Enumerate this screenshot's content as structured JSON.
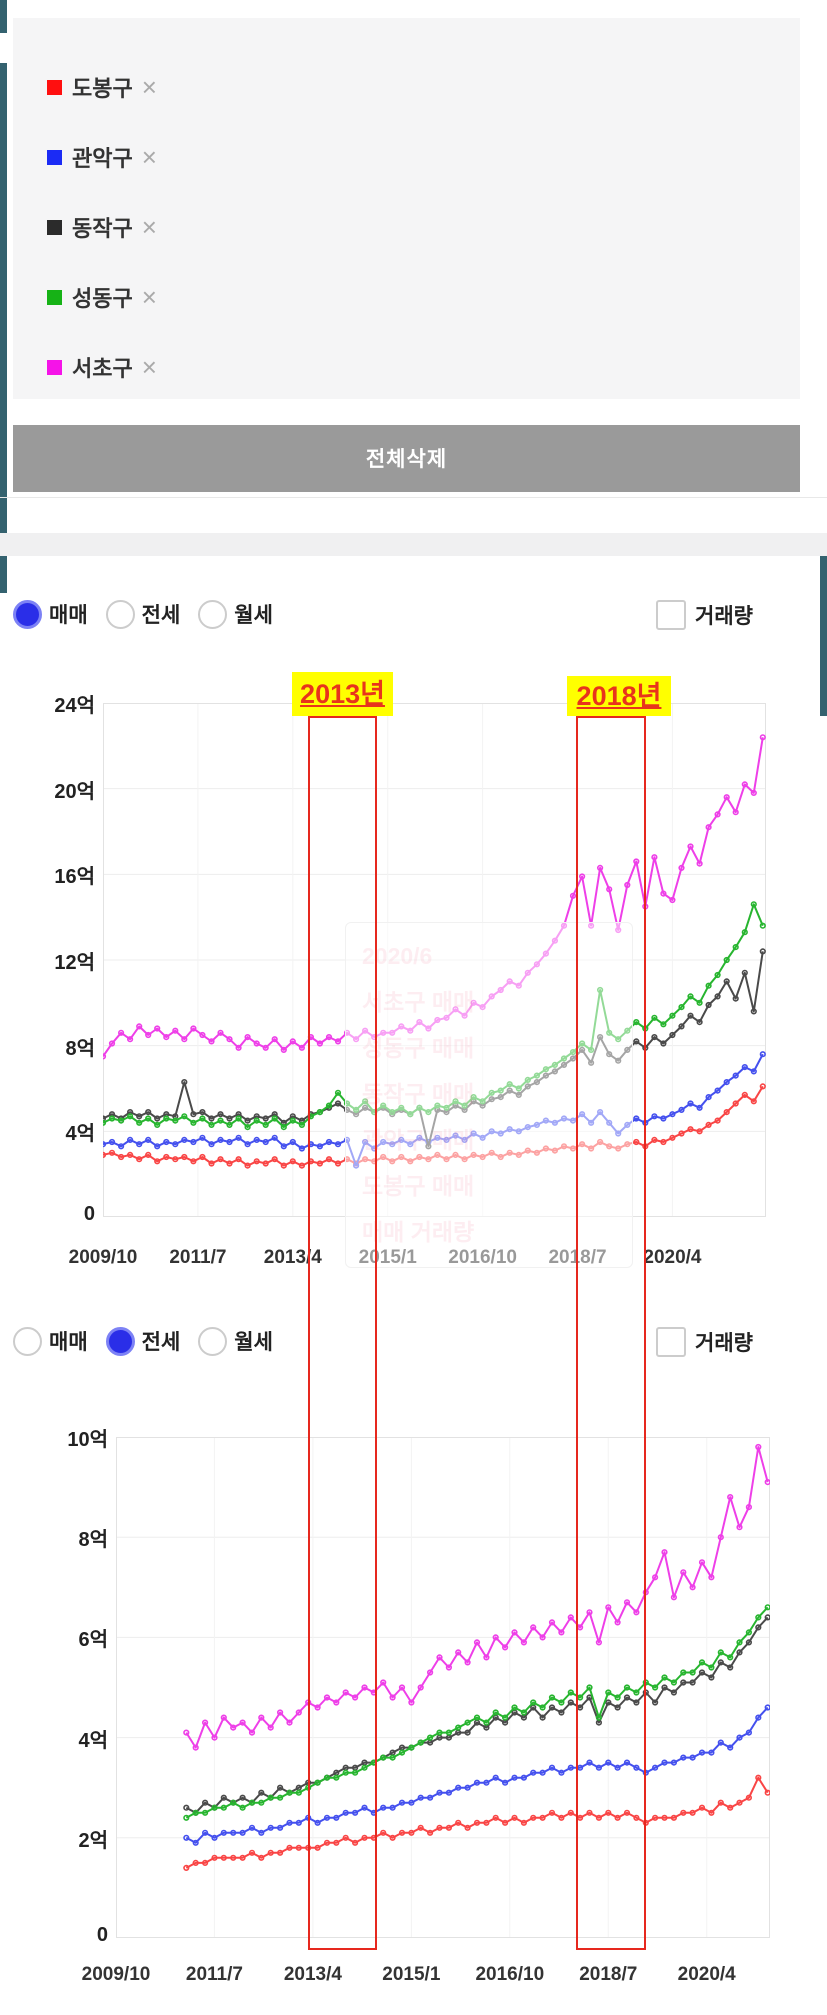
{
  "legend": {
    "items": [
      {
        "label": "도봉구",
        "color": "#ff0f0f",
        "remove": "×"
      },
      {
        "label": "관악구",
        "color": "#1b2bf5",
        "remove": "×"
      },
      {
        "label": "동작구",
        "color": "#2b2b2b",
        "remove": "×"
      },
      {
        "label": "성동구",
        "color": "#16b216",
        "remove": "×"
      },
      {
        "label": "서초구",
        "color": "#f513e8",
        "remove": "×"
      }
    ]
  },
  "delete_all_button": {
    "label": "전체삭제",
    "bg": "#9a9a9a"
  },
  "controls_top": {
    "radios": [
      {
        "label": "매매",
        "selected": true
      },
      {
        "label": "전세",
        "selected": false
      },
      {
        "label": "월세",
        "selected": false
      }
    ],
    "checkbox": {
      "label": "거래량",
      "checked": false
    }
  },
  "controls_bottom": {
    "radios": [
      {
        "label": "매매",
        "selected": false
      },
      {
        "label": "전세",
        "selected": true
      },
      {
        "label": "월세",
        "selected": false
      }
    ],
    "checkbox": {
      "label": "거래량",
      "checked": false
    }
  },
  "annotations": {
    "labels": [
      {
        "text": "2013년"
      },
      {
        "text": "2018년"
      }
    ],
    "highlight_bg": "#ffff00",
    "text_color": "#e8341c",
    "box_color": "#e6281e"
  },
  "tooltip_watermark": {
    "lines": [
      "2020/6",
      "서초구 매매",
      "성동구 매매",
      "동작구 매매",
      "관악구 매매",
      "도봉구 매매",
      "매매 거래량"
    ]
  },
  "chart_data": [
    {
      "type": "line",
      "mode": "매매",
      "unit": "억원",
      "ylim": [
        0,
        24
      ],
      "yticks": [
        0,
        4,
        8,
        12,
        16,
        20,
        24
      ],
      "ytick_labels": [
        "0",
        "4억",
        "8억",
        "12억",
        "16억",
        "20억",
        "24억"
      ],
      "xlim_months": [
        0,
        146.7
      ],
      "xtick_months": [
        0,
        21,
        42,
        63,
        84,
        105,
        126
      ],
      "xtick_labels": [
        "2009/10",
        "2011/7",
        "2013/4",
        "2015/1",
        "2016/10",
        "2018/7",
        "2020/4"
      ],
      "series": [
        {
          "name": "도봉구",
          "color": "#f94545",
          "start_month": 0,
          "month_step": 2,
          "values": [
            2.9,
            3.0,
            2.8,
            2.9,
            2.7,
            2.9,
            2.6,
            2.8,
            2.7,
            2.8,
            2.6,
            2.8,
            2.5,
            2.7,
            2.5,
            2.7,
            2.4,
            2.6,
            2.5,
            2.7,
            2.4,
            2.6,
            2.4,
            2.6,
            2.5,
            2.7,
            2.5,
            2.7,
            2.5,
            2.7,
            2.6,
            2.8,
            2.6,
            2.8,
            2.6,
            2.8,
            2.7,
            2.9,
            2.7,
            2.9,
            2.7,
            2.9,
            2.8,
            3.0,
            2.8,
            3.0,
            2.9,
            3.1,
            3.0,
            3.2,
            3.1,
            3.3,
            3.2,
            3.4,
            3.2,
            3.5,
            3.3,
            3.2,
            3.4,
            3.5,
            3.3,
            3.6,
            3.5,
            3.7,
            3.9,
            4.1,
            4.0,
            4.3,
            4.5,
            4.9,
            5.3,
            5.7,
            5.4,
            6.1
          ]
        },
        {
          "name": "관악구",
          "color": "#4450ee",
          "start_month": 0,
          "month_step": 2,
          "values": [
            3.4,
            3.5,
            3.3,
            3.6,
            3.4,
            3.6,
            3.3,
            3.5,
            3.4,
            3.6,
            3.5,
            3.7,
            3.4,
            3.6,
            3.5,
            3.7,
            3.4,
            3.6,
            3.5,
            3.7,
            3.3,
            3.5,
            3.2,
            3.4,
            3.3,
            3.5,
            3.4,
            3.6,
            2.4,
            3.5,
            3.2,
            3.5,
            3.4,
            3.6,
            3.4,
            3.7,
            3.5,
            3.7,
            3.6,
            3.8,
            3.6,
            3.9,
            3.7,
            4.0,
            3.9,
            4.1,
            4.0,
            4.2,
            4.3,
            4.5,
            4.4,
            4.6,
            4.5,
            4.8,
            4.4,
            4.9,
            4.4,
            3.9,
            4.3,
            4.6,
            4.4,
            4.7,
            4.6,
            4.8,
            5.0,
            5.3,
            5.1,
            5.6,
            5.9,
            6.3,
            6.6,
            7.0,
            6.8,
            7.6
          ]
        },
        {
          "name": "동작구",
          "color": "#4a4a4a",
          "start_month": 0,
          "month_step": 2,
          "values": [
            4.6,
            4.8,
            4.6,
            4.9,
            4.7,
            4.9,
            4.6,
            4.8,
            4.7,
            6.3,
            4.8,
            4.9,
            4.6,
            4.8,
            4.6,
            4.8,
            4.5,
            4.7,
            4.6,
            4.8,
            4.4,
            4.7,
            4.5,
            4.8,
            4.9,
            5.1,
            5.3,
            5.0,
            4.8,
            5.1,
            4.9,
            5.1,
            4.8,
            5.0,
            4.8,
            5.1,
            3.3,
            5.0,
            4.9,
            5.2,
            5.0,
            5.4,
            5.2,
            5.5,
            5.6,
            5.9,
            5.7,
            6.1,
            6.3,
            6.6,
            6.8,
            7.1,
            7.4,
            7.8,
            7.2,
            8.4,
            7.6,
            7.3,
            7.8,
            8.2,
            7.9,
            8.4,
            8.1,
            8.5,
            8.9,
            9.4,
            9.1,
            9.9,
            10.3,
            11.0,
            10.2,
            11.4,
            9.6,
            12.4
          ]
        },
        {
          "name": "성동구",
          "color": "#27b52f",
          "start_month": 0,
          "month_step": 2,
          "values": [
            4.4,
            4.6,
            4.5,
            4.7,
            4.4,
            4.6,
            4.3,
            4.6,
            4.5,
            4.7,
            4.4,
            4.6,
            4.3,
            4.5,
            4.3,
            4.6,
            4.2,
            4.5,
            4.3,
            4.6,
            4.2,
            4.5,
            4.3,
            4.7,
            4.9,
            5.2,
            5.8,
            5.3,
            5.0,
            5.4,
            4.9,
            5.2,
            4.9,
            5.1,
            4.8,
            5.1,
            4.9,
            5.2,
            5.1,
            5.4,
            5.2,
            5.6,
            5.4,
            5.8,
            5.9,
            6.2,
            6.0,
            6.4,
            6.6,
            6.9,
            7.1,
            7.4,
            7.7,
            8.1,
            7.8,
            10.6,
            8.6,
            8.3,
            8.7,
            9.1,
            8.8,
            9.3,
            9.0,
            9.4,
            9.8,
            10.3,
            10.0,
            10.8,
            11.3,
            12.0,
            12.6,
            13.3,
            14.6,
            13.6
          ]
        },
        {
          "name": "서초구",
          "color": "#ee3fe8",
          "start_month": 0,
          "month_step": 2,
          "values": [
            7.5,
            8.1,
            8.6,
            8.3,
            8.9,
            8.5,
            8.8,
            8.4,
            8.7,
            8.3,
            8.8,
            8.5,
            8.2,
            8.6,
            8.3,
            7.9,
            8.4,
            8.1,
            7.9,
            8.3,
            7.8,
            8.2,
            7.9,
            8.4,
            8.1,
            8.4,
            8.2,
            8.6,
            8.3,
            8.7,
            8.4,
            8.6,
            8.6,
            8.9,
            8.7,
            9.1,
            8.8,
            9.2,
            9.3,
            9.7,
            9.4,
            10.0,
            9.8,
            10.3,
            10.6,
            11.0,
            10.8,
            11.4,
            11.8,
            12.3,
            12.9,
            13.6,
            15.0,
            15.9,
            13.6,
            16.3,
            15.3,
            13.4,
            15.5,
            16.6,
            14.5,
            16.8,
            15.1,
            14.8,
            16.3,
            17.3,
            16.5,
            18.2,
            18.8,
            19.6,
            18.9,
            20.2,
            19.8,
            22.4
          ]
        }
      ]
    },
    {
      "type": "line",
      "mode": "전세",
      "unit": "억원",
      "ylim": [
        0,
        10
      ],
      "yticks": [
        0,
        2,
        4,
        6,
        8,
        10
      ],
      "ytick_labels": [
        "0",
        "2억",
        "4억",
        "6억",
        "8억",
        "10억"
      ],
      "xlim_months": [
        0,
        139.5
      ],
      "xtick_months": [
        0,
        21,
        42,
        63,
        84,
        105,
        126
      ],
      "xtick_labels": [
        "2009/10",
        "2011/7",
        "2013/4",
        "2015/1",
        "2016/10",
        "2018/7",
        "2020/4"
      ],
      "series": [
        {
          "name": "도봉구",
          "color": "#f94545",
          "start_month": 15,
          "month_step": 2,
          "values": [
            1.4,
            1.5,
            1.5,
            1.6,
            1.6,
            1.6,
            1.6,
            1.7,
            1.6,
            1.7,
            1.7,
            1.8,
            1.8,
            1.8,
            1.8,
            1.9,
            1.9,
            2.0,
            1.9,
            2.0,
            2.0,
            2.1,
            2.0,
            2.1,
            2.1,
            2.2,
            2.1,
            2.2,
            2.2,
            2.3,
            2.2,
            2.3,
            2.3,
            2.4,
            2.3,
            2.4,
            2.3,
            2.4,
            2.4,
            2.5,
            2.4,
            2.5,
            2.4,
            2.5,
            2.4,
            2.5,
            2.4,
            2.5,
            2.4,
            2.3,
            2.4,
            2.4,
            2.4,
            2.5,
            2.5,
            2.6,
            2.5,
            2.7,
            2.6,
            2.7,
            2.8,
            3.2,
            2.9
          ]
        },
        {
          "name": "관악구",
          "color": "#4450ee",
          "start_month": 15,
          "month_step": 2,
          "values": [
            2.0,
            1.9,
            2.1,
            2.0,
            2.1,
            2.1,
            2.1,
            2.2,
            2.1,
            2.2,
            2.2,
            2.3,
            2.3,
            2.4,
            2.3,
            2.4,
            2.4,
            2.5,
            2.5,
            2.6,
            2.5,
            2.6,
            2.6,
            2.7,
            2.7,
            2.8,
            2.8,
            2.9,
            2.9,
            3.0,
            3.0,
            3.1,
            3.1,
            3.2,
            3.1,
            3.2,
            3.2,
            3.3,
            3.3,
            3.4,
            3.3,
            3.4,
            3.4,
            3.5,
            3.4,
            3.5,
            3.4,
            3.5,
            3.4,
            3.3,
            3.4,
            3.5,
            3.5,
            3.6,
            3.6,
            3.7,
            3.7,
            3.9,
            3.8,
            4.0,
            4.1,
            4.4,
            4.6
          ]
        },
        {
          "name": "동작구",
          "color": "#4a4a4a",
          "start_month": 15,
          "month_step": 2,
          "values": [
            2.6,
            2.5,
            2.7,
            2.6,
            2.8,
            2.7,
            2.8,
            2.7,
            2.9,
            2.8,
            3.0,
            2.9,
            3.0,
            3.1,
            3.1,
            3.2,
            3.3,
            3.4,
            3.4,
            3.5,
            3.5,
            3.6,
            3.7,
            3.8,
            3.8,
            3.9,
            3.9,
            4.0,
            4.0,
            4.1,
            4.1,
            4.3,
            4.2,
            4.4,
            4.3,
            4.5,
            4.4,
            4.6,
            4.4,
            4.6,
            4.5,
            4.7,
            4.6,
            4.8,
            4.3,
            4.7,
            4.6,
            4.8,
            4.7,
            4.9,
            4.7,
            5.0,
            4.9,
            5.1,
            5.1,
            5.3,
            5.2,
            5.5,
            5.4,
            5.7,
            5.9,
            6.2,
            6.4
          ]
        },
        {
          "name": "성동구",
          "color": "#27b52f",
          "start_month": 15,
          "month_step": 2,
          "values": [
            2.4,
            2.5,
            2.5,
            2.6,
            2.6,
            2.7,
            2.6,
            2.7,
            2.7,
            2.8,
            2.8,
            2.9,
            2.9,
            3.0,
            3.1,
            3.2,
            3.2,
            3.3,
            3.3,
            3.4,
            3.5,
            3.6,
            3.6,
            3.7,
            3.8,
            3.9,
            4.0,
            4.1,
            4.1,
            4.2,
            4.3,
            4.4,
            4.3,
            4.5,
            4.4,
            4.6,
            4.5,
            4.7,
            4.6,
            4.8,
            4.7,
            4.9,
            4.8,
            5.0,
            4.4,
            4.9,
            4.8,
            5.0,
            4.9,
            5.1,
            5.0,
            5.2,
            5.1,
            5.3,
            5.3,
            5.5,
            5.4,
            5.7,
            5.6,
            5.9,
            6.1,
            6.4,
            6.6
          ]
        },
        {
          "name": "서초구",
          "color": "#ee3fe8",
          "start_month": 15,
          "month_step": 2,
          "values": [
            4.1,
            3.8,
            4.3,
            4.0,
            4.4,
            4.2,
            4.3,
            4.1,
            4.4,
            4.2,
            4.5,
            4.3,
            4.5,
            4.7,
            4.6,
            4.8,
            4.7,
            4.9,
            4.8,
            5.0,
            4.9,
            5.1,
            4.8,
            5.0,
            4.7,
            5.0,
            5.3,
            5.6,
            5.4,
            5.7,
            5.5,
            5.9,
            5.6,
            6.0,
            5.8,
            6.1,
            5.9,
            6.2,
            6.0,
            6.3,
            6.1,
            6.4,
            6.2,
            6.5,
            5.9,
            6.6,
            6.3,
            6.7,
            6.5,
            6.9,
            7.2,
            7.7,
            6.8,
            7.3,
            7.0,
            7.5,
            7.2,
            8.0,
            8.8,
            8.2,
            8.6,
            9.8,
            9.1
          ]
        }
      ]
    }
  ]
}
